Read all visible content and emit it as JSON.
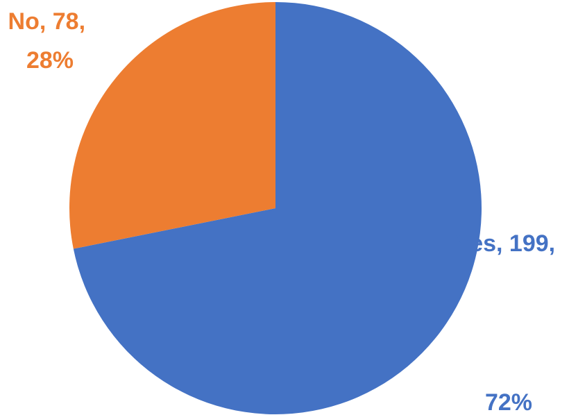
{
  "chart_data": {
    "type": "pie",
    "categories": [
      "Yes",
      "No"
    ],
    "values": [
      199,
      78
    ],
    "percentages": [
      "72%",
      "28%"
    ],
    "colors": [
      "#4472C4",
      "#ED7D31"
    ],
    "start_angle_deg": 0,
    "direction": "clockwise",
    "labels": [
      {
        "line1": "Yes, 199,",
        "line2": "72%"
      },
      {
        "line1": "No, 78,",
        "line2": "28%"
      }
    ],
    "legend": "none"
  }
}
